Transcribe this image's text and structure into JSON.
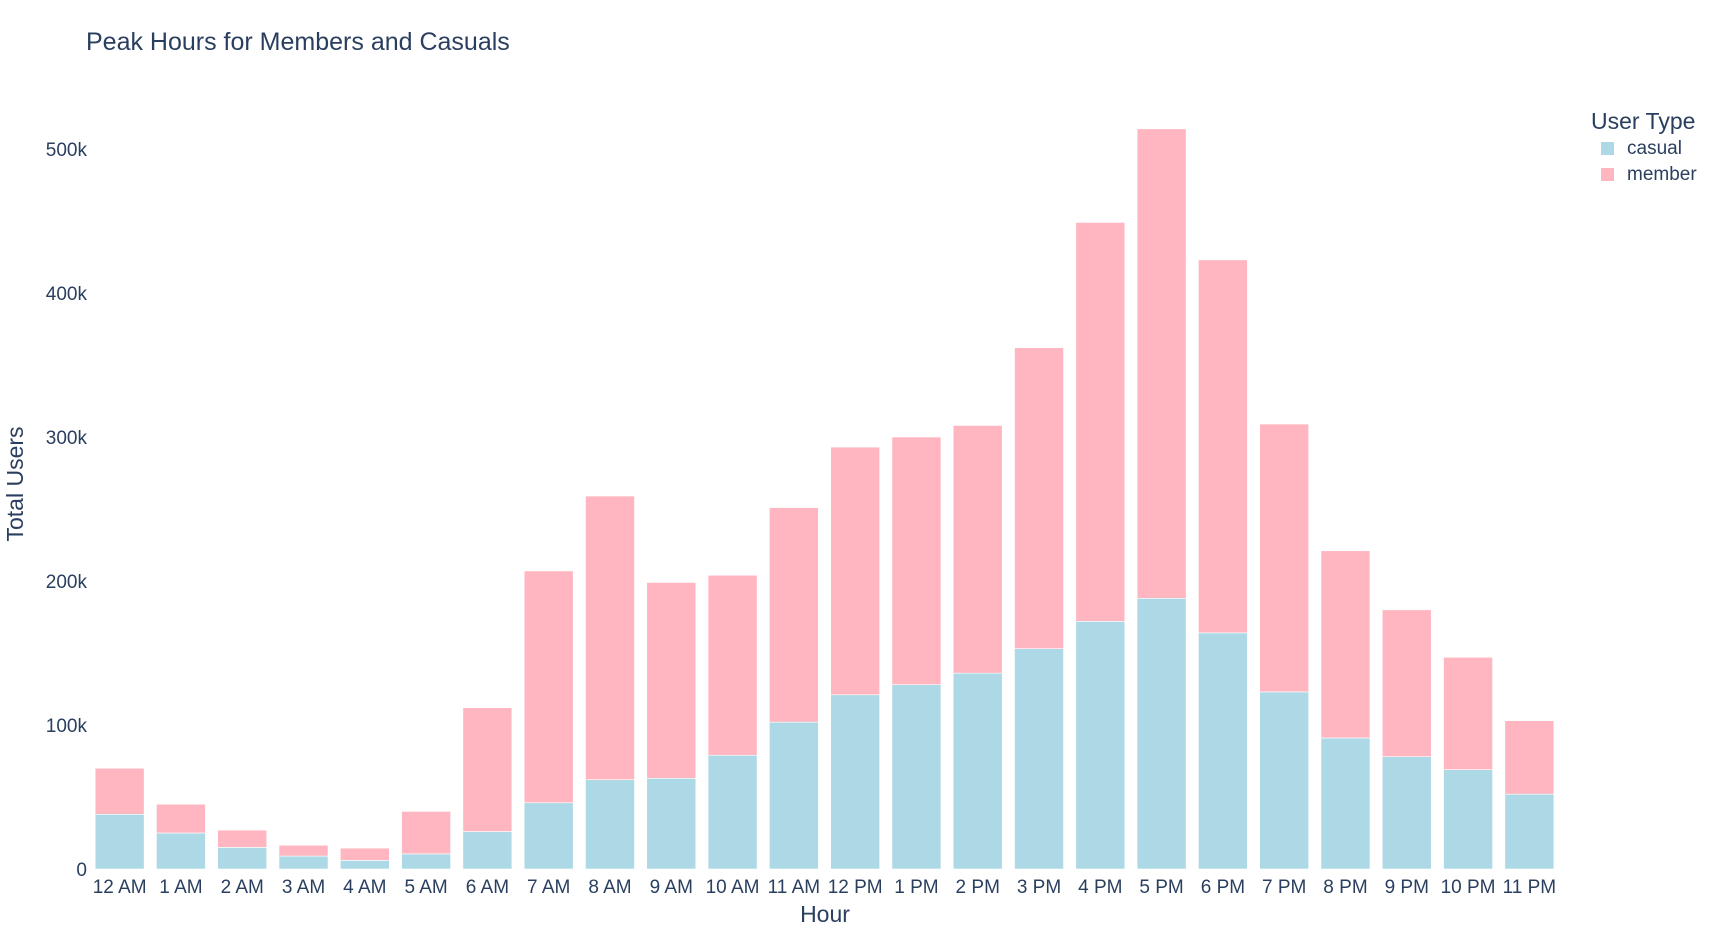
{
  "chart_data": {
    "type": "bar",
    "barmode": "stack",
    "title": "Peak Hours for Members and Casuals",
    "xlabel": "Hour",
    "ylabel": "Total Users",
    "ylim": [
      0,
      550000
    ],
    "yticks": [
      0,
      100000,
      200000,
      300000,
      400000,
      500000
    ],
    "ytick_labels": [
      "0",
      "100k",
      "200k",
      "300k",
      "400k",
      "500k"
    ],
    "grid": false,
    "legend": {
      "title": "User Type",
      "placement": "top-right"
    },
    "categories": [
      "12 AM",
      "1 AM",
      "2 AM",
      "3 AM",
      "4 AM",
      "5 AM",
      "6 AM",
      "7 AM",
      "8 AM",
      "9 AM",
      "10 AM",
      "11 AM",
      "12 PM",
      "1 PM",
      "2 PM",
      "3 PM",
      "4 PM",
      "5 PM",
      "6 PM",
      "7 PM",
      "8 PM",
      "9 PM",
      "10 PM",
      "11 PM"
    ],
    "series": [
      {
        "name": "casual",
        "color": "#add8e6",
        "values": [
          38000,
          25000,
          15000,
          9000,
          6000,
          10500,
          26000,
          46000,
          62000,
          63000,
          79000,
          102000,
          121000,
          128000,
          136000,
          153000,
          172000,
          188000,
          164000,
          123000,
          91000,
          78000,
          69000,
          52000
        ]
      },
      {
        "name": "member",
        "color": "#ffb6c1",
        "values": [
          32000,
          20000,
          12000,
          7500,
          8500,
          29500,
          86000,
          161000,
          197000,
          136000,
          125000,
          149000,
          172000,
          172000,
          172000,
          209000,
          277000,
          326000,
          259000,
          186000,
          130000,
          102000,
          78000,
          51000
        ]
      }
    ]
  }
}
